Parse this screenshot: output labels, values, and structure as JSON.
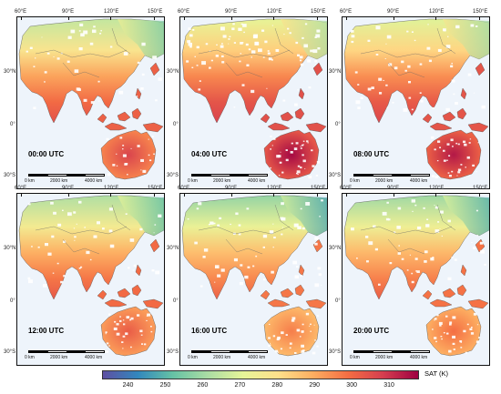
{
  "panels": [
    {
      "time": "00:00 UTC",
      "warmth": 0.55,
      "night_north": 0.0
    },
    {
      "time": "04:00 UTC",
      "warmth": 0.95,
      "night_north": 0.6
    },
    {
      "time": "08:00 UTC",
      "warmth": 0.85,
      "night_north": 0.3
    },
    {
      "time": "12:00 UTC",
      "warmth": 0.35,
      "night_north": 0.0
    },
    {
      "time": "16:00 UTC",
      "warmth": 0.1,
      "night_north": 0.0
    },
    {
      "time": "20:00 UTC",
      "warmth": 0.2,
      "night_north": 0.0
    }
  ],
  "lon_labels": [
    "60°E",
    "90°E",
    "120°E",
    "150°E"
  ],
  "lat_labels": [
    "30°N",
    "0°",
    "30°S"
  ],
  "scale_labels": [
    "0 km",
    "2000 km",
    "4000 km"
  ],
  "colorbar": {
    "title": "SAT (K)",
    "min": 233,
    "max": 318,
    "ticks": [
      "240",
      "250",
      "260",
      "270",
      "280",
      "290",
      "300",
      "310"
    ],
    "tick_values": [
      240,
      250,
      260,
      270,
      280,
      290,
      300,
      310
    ],
    "colors": [
      "#5e4fa2",
      "#3288bd",
      "#66c2a5",
      "#abdda4",
      "#e6f598",
      "#fee08b",
      "#fdae61",
      "#f46d43",
      "#d53e4f",
      "#9e0142"
    ]
  }
}
